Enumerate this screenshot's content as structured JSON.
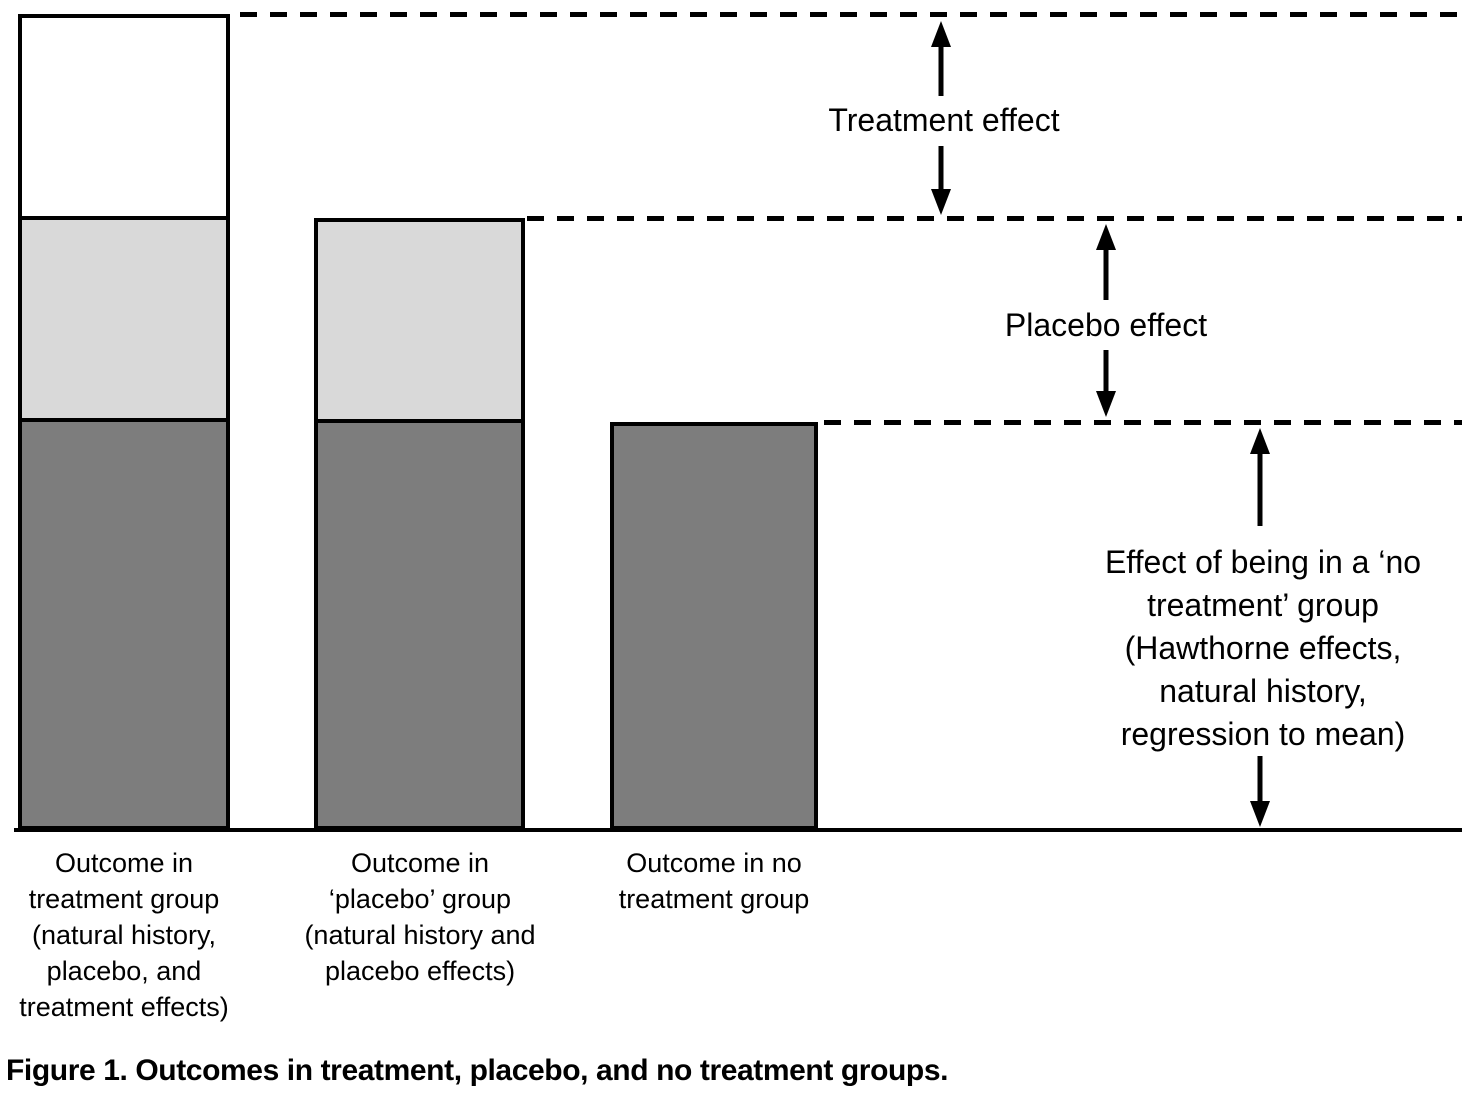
{
  "figure_caption": "Figure 1. Outcomes in treatment, placebo, and no treatment groups.",
  "annotations": {
    "treatment_effect": "Treatment effect",
    "placebo_effect": "Placebo effect",
    "no_treatment_effect": "Effect of being in a ‘no\ntreatment’ group\n(Hawthorne effects,\nnatural history,\nregression to mean)"
  },
  "chart_data": {
    "type": "bar",
    "stacked": true,
    "orientation": "vertical",
    "categories": [
      "Outcome in\ntreatment group\n(natural history,\nplacebo, and\ntreatment effects)",
      "Outcome in\n‘placebo’ group\n(natural history and\nplacebo effects)",
      "Outcome in no\ntreatment group"
    ],
    "series": [
      {
        "name": "Effect of being in a ‘no treatment’ group (Hawthorne effects, natural history, regression to mean)",
        "color": "#7d7d7d",
        "values": [
          50,
          50,
          50
        ]
      },
      {
        "name": "Placebo effect",
        "color": "#d9d9d9",
        "values": [
          25,
          25,
          0
        ]
      },
      {
        "name": "Treatment effect",
        "color": "#ffffff",
        "values": [
          25,
          0,
          0
        ]
      }
    ],
    "ylim": [
      0,
      100
    ],
    "value_axis": "hidden",
    "grid": false,
    "guide_lines": [
      {
        "at_level": 100,
        "style": "dashed",
        "marks": "top of treatment group bar"
      },
      {
        "at_level": 75,
        "style": "dashed",
        "marks": "top of placebo group bar"
      },
      {
        "at_level": 50,
        "style": "dashed",
        "marks": "top of no treatment group bar"
      }
    ],
    "bar_border_color": "#000000",
    "baseline_color": "#000000",
    "dashed_line_color": "#000000",
    "text_color": "#000000"
  }
}
